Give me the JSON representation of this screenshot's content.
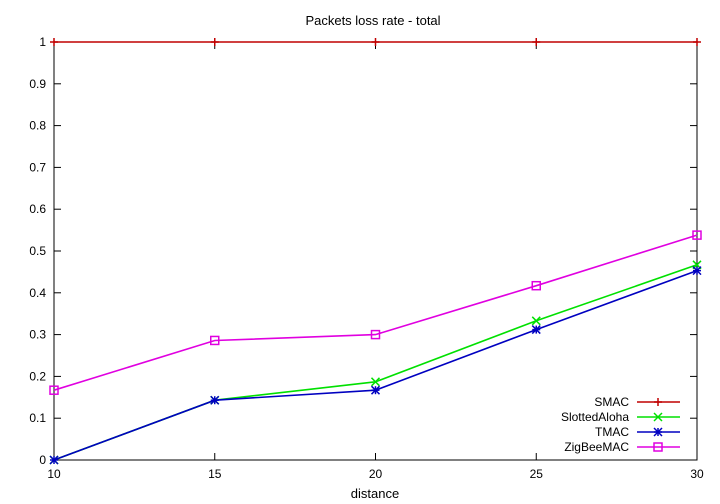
{
  "chart_data": {
    "type": "line",
    "title": "Packets loss rate - total",
    "xlabel": "distance",
    "ylabel": "",
    "x": [
      10,
      15,
      20,
      25,
      30
    ],
    "xlim": [
      10,
      30
    ],
    "ylim": [
      0,
      1
    ],
    "xticks": [
      "10",
      "15",
      "20",
      "25",
      "30"
    ],
    "yticks": [
      "0",
      "0.1",
      "0.2",
      "0.3",
      "0.4",
      "0.5",
      "0.6",
      "0.7",
      "0.8",
      "0.9",
      "1"
    ],
    "grid": false,
    "legend_position": "bottom-right",
    "series": [
      {
        "name": "SMAC",
        "color": "#c00000",
        "marker": "plus",
        "values": [
          1,
          1,
          1,
          1,
          1
        ]
      },
      {
        "name": "SlottedAloha",
        "color": "#00e000",
        "marker": "cross",
        "values": [
          0,
          0.143,
          0.187,
          0.333,
          0.467
        ]
      },
      {
        "name": "TMAC",
        "color": "#0000c0",
        "marker": "star",
        "values": [
          0,
          0.143,
          0.167,
          0.312,
          0.453
        ]
      },
      {
        "name": "ZigBeeMAC",
        "color": "#e000e0",
        "marker": "square",
        "values": [
          0.167,
          0.286,
          0.3,
          0.417,
          0.538
        ]
      }
    ]
  }
}
